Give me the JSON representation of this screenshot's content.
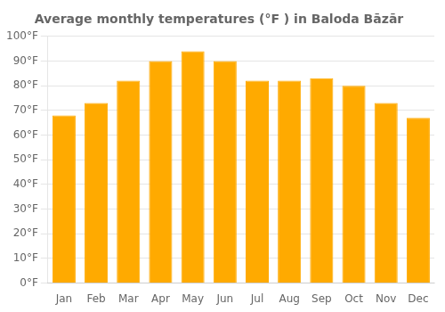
{
  "chart_data": {
    "type": "bar",
    "title": "Average monthly temperatures (°F ) in Baloda Bāzār",
    "categories": [
      "Jan",
      "Feb",
      "Mar",
      "Apr",
      "May",
      "Jun",
      "Jul",
      "Aug",
      "Sep",
      "Oct",
      "Nov",
      "Dec"
    ],
    "values": [
      68,
      73,
      82,
      90,
      94,
      90,
      82,
      82,
      83,
      80,
      73,
      67
    ],
    "color": "#FFAA00",
    "ylim": [
      0,
      100
    ],
    "yticks": [
      {
        "value": 0,
        "label": "0°F"
      },
      {
        "value": 10,
        "label": "10°F"
      },
      {
        "value": 20,
        "label": "20°F"
      },
      {
        "value": 30,
        "label": "30°F"
      },
      {
        "value": 40,
        "label": "40°F"
      },
      {
        "value": 50,
        "label": "50°F"
      },
      {
        "value": 60,
        "label": "60°F"
      },
      {
        "value": 70,
        "label": "70°F"
      },
      {
        "value": 80,
        "label": "80°F"
      },
      {
        "value": 90,
        "label": "90°F"
      },
      {
        "value": 100,
        "label": "100°F"
      }
    ],
    "grid": true
  }
}
